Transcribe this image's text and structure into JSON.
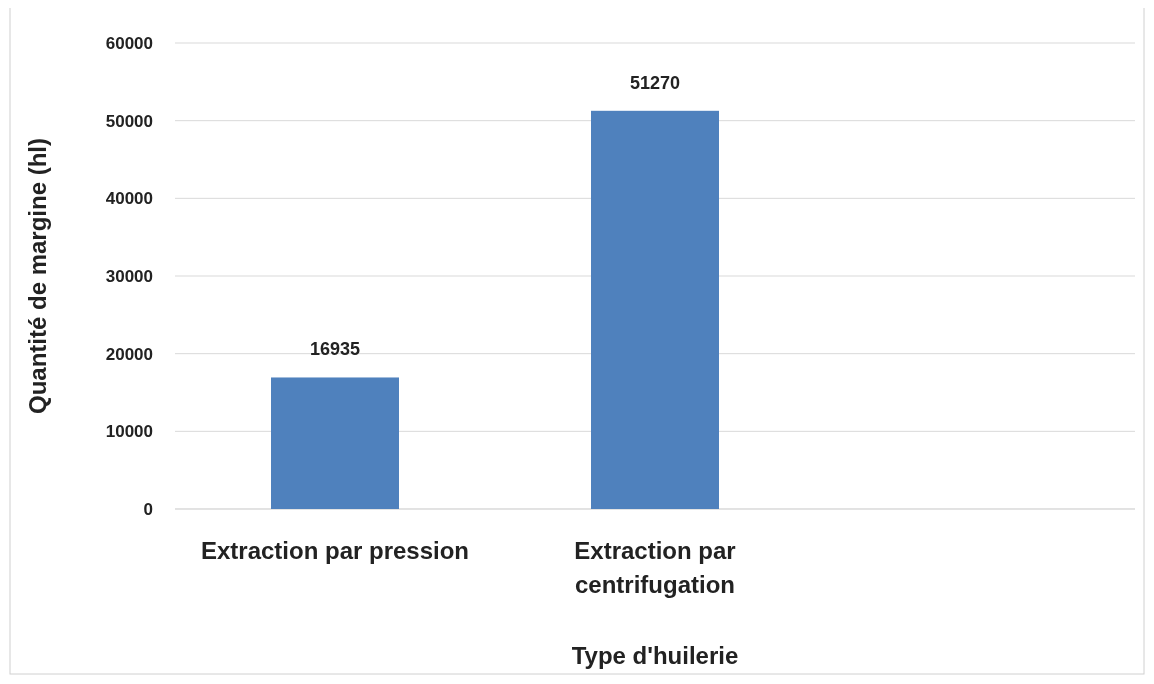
{
  "chart_data": {
    "type": "bar",
    "xlabel": "Type d'huilerie",
    "ylabel": "Quantité de margine (hl)",
    "categories": [
      "Extraction par pression",
      "Extraction par centrifugation",
      null
    ],
    "values": [
      16935,
      51270,
      null
    ],
    "color": "#4f81bd",
    "ylim": [
      0,
      60000
    ],
    "yticks": [
      0,
      10000,
      20000,
      30000,
      40000,
      50000,
      60000
    ],
    "grid": "y",
    "data_labels": true
  }
}
